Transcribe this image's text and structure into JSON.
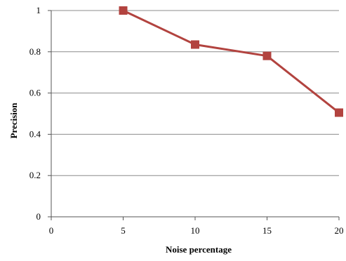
{
  "chart_data": {
    "type": "line",
    "title": "",
    "xlabel": "Noise percentage",
    "ylabel": "Precision",
    "x": [
      5,
      10,
      15,
      20
    ],
    "series": [
      {
        "values": [
          1.0,
          0.835,
          0.78,
          0.505
        ],
        "color": "#b2433f"
      }
    ],
    "xlim": [
      0,
      20
    ],
    "ylim": [
      0,
      1
    ],
    "xticks": [
      0,
      5,
      10,
      15,
      20
    ],
    "xtick_labels": [
      "0",
      "5",
      "10",
      "15",
      "20"
    ],
    "yticks": [
      0,
      0.2,
      0.4,
      0.6,
      0.8,
      1
    ],
    "ytick_labels": [
      "0",
      "0.2",
      "0.4",
      "0.6",
      "0.8",
      "1"
    ],
    "grid": "horizontal",
    "legend": "none",
    "marker": "square"
  }
}
